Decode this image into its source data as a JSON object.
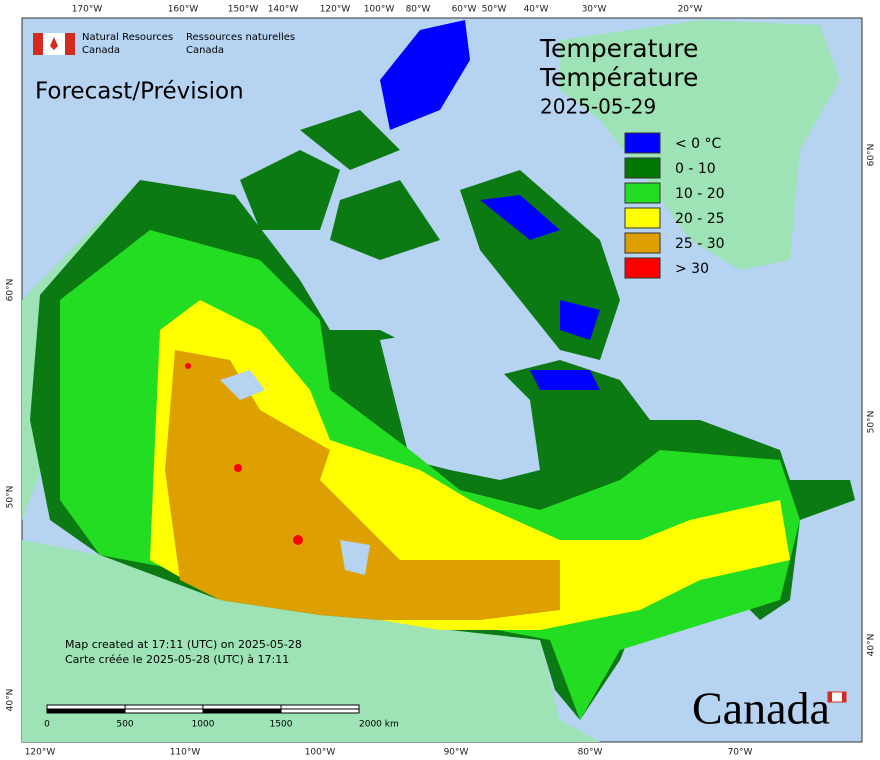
{
  "header": {
    "agency_en": "Natural Resources",
    "agency_en_2": "Canada",
    "agency_fr": "Ressources naturelles",
    "agency_fr_2": "Canada"
  },
  "subtitle": "Forecast/Prévision",
  "title": [
    "Temperature",
    "Température",
    "2025-05-29"
  ],
  "legend": [
    {
      "label": "< 0 °C",
      "color": "#0000ff"
    },
    {
      "label": "0 - 10",
      "color": "#007700"
    },
    {
      "label": "10 - 20",
      "color": "#22dd22"
    },
    {
      "label": "20 - 25",
      "color": "#ffff00"
    },
    {
      "label": "25 - 30",
      "color": "#dda000"
    },
    {
      "label": "> 30",
      "color": "#ff0000"
    }
  ],
  "graticule_top": [
    "170°W",
    "160°W",
    "150°W",
    "140°W",
    "120°W",
    "100°W",
    "80°W",
    "60°W",
    "50°W",
    "40°W",
    "30°W",
    "20°W"
  ],
  "graticule_bottom": [
    "120°W",
    "110°W",
    "100°W",
    "90°W",
    "80°W",
    "70°W"
  ],
  "graticule_left": [
    "60°N",
    "50°N",
    "40°N"
  ],
  "graticule_right": [
    "60°N",
    "50°N",
    "40°N"
  ],
  "credits": [
    "Map created at 17:11 (UTC) on 2025-05-28",
    "Carte créée le 2025-05-28 (UTC) à 17:11"
  ],
  "scale_bar": [
    "0",
    "500",
    "1000",
    "1500",
    "2000 km"
  ],
  "wordmark": "Canada"
}
